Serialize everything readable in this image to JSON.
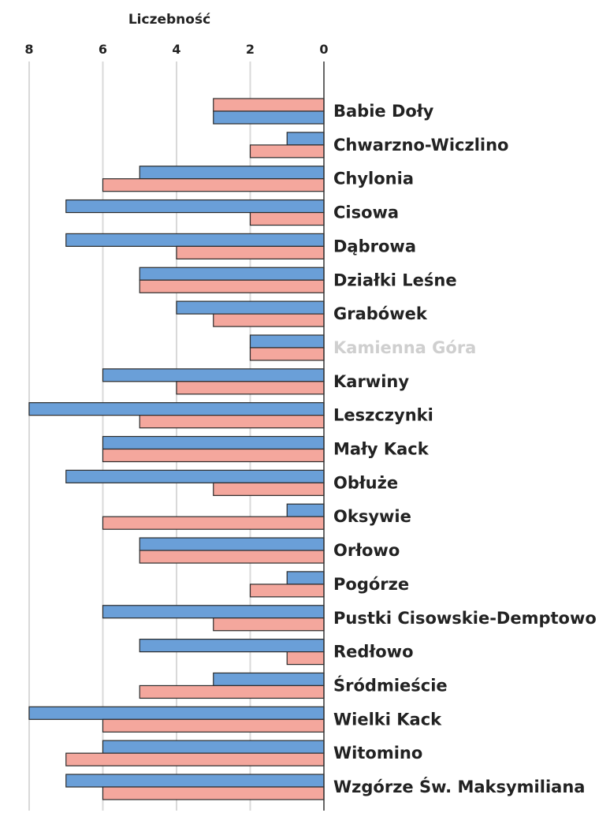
{
  "chart_data": {
    "type": "bar",
    "orientation": "horizontal-reversed",
    "xlabel": "Liczebność",
    "xlim": [
      0,
      8.5
    ],
    "xticks": [
      8,
      6,
      4,
      2,
      0
    ],
    "grid": true,
    "categories": [
      "Babie Doły",
      "Chwarzno-Wiczlino",
      "Chylonia",
      "Cisowa",
      "Dąbrowa",
      "Działki Leśne",
      "Grabówek",
      "Kamienna Góra",
      "Karwiny",
      "Leszczynki",
      "Mały Kack",
      "Obłuże",
      "Oksywie",
      "Orłowo",
      "Pogórze",
      "Pustki Cisowskie-Demptowo",
      "Redłowo",
      "Śródmieście",
      "Wielki Kack",
      "Witomino",
      "Wzgórze Św. Maksymiliana"
    ],
    "dimmed_categories": [
      "Kamienna Góra"
    ],
    "series": [
      {
        "key": "pink",
        "color": "#f4a79d",
        "values": [
          3,
          2,
          6,
          2,
          4,
          5,
          3,
          2,
          4,
          5,
          6,
          3,
          6,
          5,
          2,
          3,
          1,
          5,
          6,
          7,
          6
        ]
      },
      {
        "key": "blue",
        "color": "#6a9fd8",
        "values": [
          3,
          1,
          5,
          7,
          7,
          5,
          4,
          2,
          6,
          8,
          6,
          7,
          1,
          5,
          1,
          6,
          5,
          3,
          8,
          6,
          7
        ]
      }
    ],
    "series_order": {
      "Babie Doły": [
        "pink",
        "blue"
      ],
      "Chwarzno-Wiczlino": [
        "blue",
        "pink"
      ],
      "Chylonia": [
        "blue",
        "pink"
      ],
      "Cisowa": [
        "blue",
        "pink"
      ],
      "Dąbrowa": [
        "blue",
        "pink"
      ],
      "Działki Leśne": [
        "blue",
        "pink"
      ],
      "Grabówek": [
        "blue",
        "pink"
      ],
      "Kamienna Góra": [
        "blue",
        "pink"
      ],
      "Karwiny": [
        "blue",
        "pink"
      ],
      "Leszczynki": [
        "blue",
        "pink"
      ],
      "Mały Kack": [
        "blue",
        "pink"
      ],
      "Obłuże": [
        "blue",
        "pink"
      ],
      "Oksywie": [
        "blue",
        "pink"
      ],
      "Orłowo": [
        "blue",
        "pink"
      ],
      "Pogórze": [
        "blue",
        "pink"
      ],
      "Pustki Cisowskie-Demptowo": [
        "blue",
        "pink"
      ],
      "Redłowo": [
        "blue",
        "pink"
      ],
      "Śródmieście": [
        "blue",
        "pink"
      ],
      "Wielki Kack": [
        "blue",
        "pink"
      ],
      "Witomino": [
        "blue",
        "pink"
      ],
      "Wzgórze Św. Maksymiliana": [
        "blue",
        "pink"
      ]
    }
  }
}
